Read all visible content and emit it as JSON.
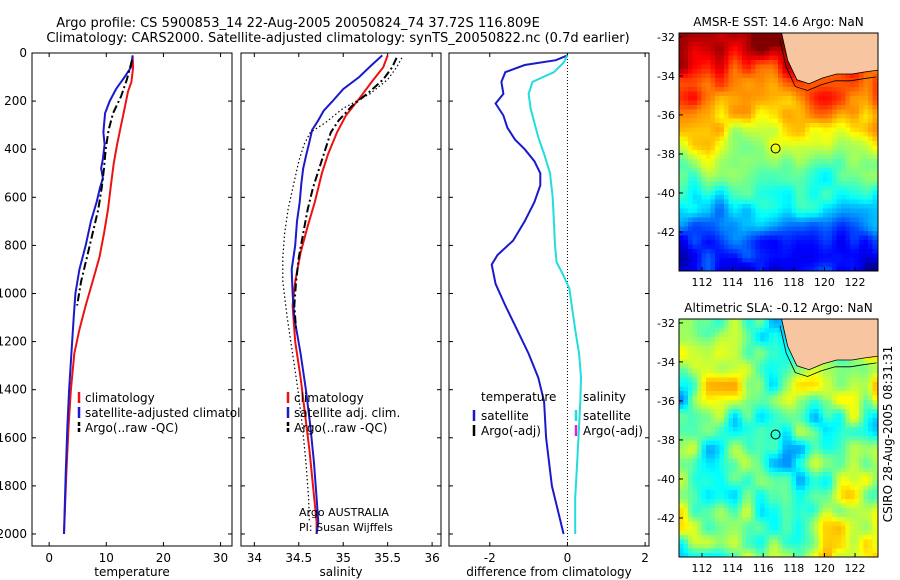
{
  "title_line1": "Argo profile: CS 5900853_14 22-Aug-2005 20050824_74 37.72S 116.809E",
  "title_line2": "Climatology: CARS2000. Satellite-adjusted climatology: synTS_20050822.nc (0.7d earlier)",
  "side_label": "CSIRO 28-Aug-2005 08:31:31",
  "colors": {
    "climatology": "#ee1111",
    "satellite": "#1a1acc",
    "argo": "#000000",
    "sal_satellite": "#22dddd",
    "sal_argo_adj": "#dd22dd",
    "land": "#f7c6a0"
  },
  "chart_data": [
    {
      "id": "temperature",
      "type": "line",
      "xlabel": "temperature",
      "ylabel": "",
      "xlim": [
        -3,
        32
      ],
      "ylim": [
        2050,
        0
      ],
      "xticks": [
        0,
        10,
        20,
        30
      ],
      "xticklabels": [
        "0",
        "10",
        "20",
        "30"
      ],
      "yticks": [
        0,
        200,
        400,
        600,
        800,
        1000,
        1200,
        1400,
        1600,
        1800,
        2000
      ],
      "yticklabels": [
        "0",
        "200",
        "400",
        "600",
        "800",
        "1000",
        "1200",
        "1400",
        "1600",
        "1800",
        "2000"
      ],
      "series": [
        {
          "name": "climatology",
          "style": "solid",
          "points": [
            [
              14.6,
              10
            ],
            [
              14.7,
              60
            ],
            [
              14.4,
              120
            ],
            [
              13.8,
              160
            ],
            [
              13.2,
              230
            ],
            [
              12.6,
              300
            ],
            [
              11.9,
              380
            ],
            [
              11.3,
              460
            ],
            [
              10.8,
              550
            ],
            [
              10.3,
              650
            ],
            [
              9.6,
              750
            ],
            [
              8.8,
              850
            ],
            [
              7.6,
              950
            ],
            [
              6.4,
              1050
            ],
            [
              5.3,
              1150
            ],
            [
              4.4,
              1250
            ],
            [
              3.8,
              1400
            ],
            [
              3.4,
              1550
            ],
            [
              3.0,
              1750
            ],
            [
              2.6,
              2000
            ]
          ]
        },
        {
          "name": "satellite-adjusted climatology",
          "style": "solid",
          "points": [
            [
              14.6,
              10
            ],
            [
              14.3,
              60
            ],
            [
              13.2,
              100
            ],
            [
              11.7,
              150
            ],
            [
              10.6,
              200
            ],
            [
              9.8,
              250
            ],
            [
              9.6,
              300
            ],
            [
              9.5,
              330
            ],
            [
              9.7,
              380
            ],
            [
              9.4,
              440
            ],
            [
              9.1,
              480
            ],
            [
              9.4,
              520
            ],
            [
              8.9,
              560
            ],
            [
              8.3,
              620
            ],
            [
              7.3,
              700
            ],
            [
              6.4,
              800
            ],
            [
              5.3,
              900
            ],
            [
              4.6,
              1000
            ],
            [
              4.3,
              1100
            ],
            [
              3.9,
              1250
            ],
            [
              3.5,
              1400
            ],
            [
              3.2,
              1550
            ],
            [
              2.9,
              1750
            ],
            [
              2.6,
              2000
            ]
          ]
        },
        {
          "name": "Argo(..raw -QC)",
          "style": "dashdot",
          "points": [
            [
              14.5,
              30
            ],
            [
              13.6,
              110
            ],
            [
              12.6,
              180
            ],
            [
              11.2,
              250
            ],
            [
              10.4,
              320
            ],
            [
              9.9,
              400
            ],
            [
              9.6,
              480
            ],
            [
              9.2,
              560
            ],
            [
              8.6,
              650
            ],
            [
              7.6,
              750
            ],
            [
              6.6,
              850
            ],
            [
              5.6,
              950
            ],
            [
              4.9,
              1050
            ]
          ]
        }
      ],
      "legend": [
        "climatology",
        "satellite-adjusted climatology",
        "Argo(..raw -QC)"
      ],
      "legend_position": "lower-middle"
    },
    {
      "id": "salinity",
      "type": "line",
      "xlabel": "salinity",
      "ylabel": "",
      "xlim": [
        33.85,
        36.1
      ],
      "ylim": [
        2050,
        0
      ],
      "xticks": [
        34,
        34.5,
        35,
        35.5,
        36
      ],
      "xticklabels": [
        "34",
        "34.5",
        "35",
        "35.5",
        "36"
      ],
      "series": [
        {
          "name": "climatology",
          "style": "solid",
          "points": [
            [
              35.5,
              10
            ],
            [
              35.45,
              60
            ],
            [
              35.32,
              120
            ],
            [
              35.18,
              190
            ],
            [
              35.03,
              260
            ],
            [
              34.93,
              330
            ],
            [
              34.83,
              420
            ],
            [
              34.76,
              500
            ],
            [
              34.68,
              620
            ],
            [
              34.6,
              720
            ],
            [
              34.52,
              830
            ],
            [
              34.46,
              950
            ],
            [
              34.43,
              1050
            ],
            [
              34.46,
              1200
            ],
            [
              34.52,
              1350
            ],
            [
              34.57,
              1500
            ],
            [
              34.62,
              1650
            ],
            [
              34.66,
              1800
            ],
            [
              34.7,
              1950
            ],
            [
              34.7,
              2000
            ]
          ]
        },
        {
          "name": "satellite adj. clim.",
          "style": "solid",
          "points": [
            [
              35.44,
              10
            ],
            [
              35.32,
              50
            ],
            [
              35.18,
              100
            ],
            [
              35.0,
              150
            ],
            [
              34.88,
              200
            ],
            [
              34.78,
              240
            ],
            [
              34.72,
              280
            ],
            [
              34.65,
              320
            ],
            [
              34.62,
              370
            ],
            [
              34.58,
              430
            ],
            [
              34.55,
              480
            ],
            [
              34.53,
              540
            ],
            [
              34.51,
              620
            ],
            [
              34.48,
              700
            ],
            [
              34.46,
              800
            ],
            [
              34.42,
              900
            ],
            [
              34.43,
              1000
            ],
            [
              34.45,
              1100
            ],
            [
              34.52,
              1250
            ],
            [
              34.58,
              1400
            ],
            [
              34.63,
              1550
            ],
            [
              34.67,
              1700
            ],
            [
              34.7,
              1850
            ],
            [
              34.72,
              1950
            ],
            [
              34.7,
              2000
            ]
          ]
        },
        {
          "name": "Argo(..raw -QC)",
          "style": "dashdot",
          "points": [
            [
              35.6,
              20
            ],
            [
              35.55,
              60
            ],
            [
              35.45,
              110
            ],
            [
              35.3,
              160
            ],
            [
              35.1,
              220
            ],
            [
              34.95,
              280
            ],
            [
              34.86,
              330
            ],
            [
              34.8,
              400
            ],
            [
              34.73,
              480
            ],
            [
              34.66,
              560
            ],
            [
              34.6,
              650
            ],
            [
              34.55,
              750
            ],
            [
              34.5,
              850
            ],
            [
              34.47,
              950
            ],
            [
              34.45,
              1050
            ],
            [
              34.47,
              1150
            ]
          ]
        },
        {
          "name": "",
          "style": "dotted",
          "points": [
            [
              35.66,
              20
            ],
            [
              35.6,
              60
            ],
            [
              35.5,
              110
            ],
            [
              35.3,
              170
            ],
            [
              35.0,
              230
            ],
            [
              34.8,
              290
            ],
            [
              34.63,
              330
            ],
            [
              34.56,
              380
            ],
            [
              34.5,
              450
            ],
            [
              34.44,
              550
            ],
            [
              34.38,
              650
            ],
            [
              34.34,
              750
            ],
            [
              34.32,
              850
            ],
            [
              34.32,
              950
            ],
            [
              34.37,
              1100
            ],
            [
              34.43,
              1250
            ],
            [
              34.49,
              1400
            ],
            [
              34.54,
              1550
            ],
            [
              34.58,
              1700
            ],
            [
              34.61,
              1850
            ],
            [
              34.62,
              1950
            ]
          ]
        }
      ],
      "legend": [
        "climatology",
        "satellite adj. clim.",
        "Argo(..raw -QC)"
      ],
      "legend_position": "lower-middle",
      "annotation": [
        "Argo AUSTRALIA",
        "PI: Susan Wijffels"
      ]
    },
    {
      "id": "difference",
      "type": "line",
      "xlabel": "difference from climatology",
      "ylabel": "",
      "xlim": [
        -3.05,
        2.1
      ],
      "ylim": [
        2050,
        0
      ],
      "xticks": [
        -2,
        0,
        2
      ],
      "xticklabels": [
        "-2",
        "0",
        "2"
      ],
      "reference_line": {
        "x": 0,
        "style": "dotted"
      },
      "series": [
        {
          "name": "temperature satellite",
          "style": "solid",
          "points": [
            [
              0.0,
              10
            ],
            [
              -0.3,
              30
            ],
            [
              -1.1,
              50
            ],
            [
              -1.6,
              80
            ],
            [
              -1.7,
              120
            ],
            [
              -1.65,
              170
            ],
            [
              -1.85,
              210
            ],
            [
              -1.65,
              260
            ],
            [
              -1.55,
              310
            ],
            [
              -1.35,
              360
            ],
            [
              -1.1,
              400
            ],
            [
              -0.85,
              450
            ],
            [
              -0.7,
              500
            ],
            [
              -0.7,
              550
            ],
            [
              -0.85,
              620
            ],
            [
              -1.1,
              700
            ],
            [
              -1.4,
              780
            ],
            [
              -1.8,
              840
            ],
            [
              -1.95,
              880
            ],
            [
              -1.85,
              960
            ],
            [
              -1.6,
              1050
            ],
            [
              -1.3,
              1150
            ],
            [
              -1.0,
              1250
            ],
            [
              -0.75,
              1350
            ],
            [
              -0.6,
              1450
            ],
            [
              -0.55,
              1600
            ],
            [
              -0.4,
              1800
            ],
            [
              -0.1,
              2000
            ]
          ]
        },
        {
          "name": "salinity satellite",
          "style": "solid",
          "points": [
            [
              0.0,
              10
            ],
            [
              -0.1,
              40
            ],
            [
              -0.35,
              80
            ],
            [
              -0.9,
              120
            ],
            [
              -1.0,
              170
            ],
            [
              -0.95,
              230
            ],
            [
              -0.85,
              290
            ],
            [
              -0.75,
              350
            ],
            [
              -0.6,
              420
            ],
            [
              -0.45,
              500
            ],
            [
              -0.38,
              600
            ],
            [
              -0.35,
              700
            ],
            [
              -0.32,
              800
            ],
            [
              -0.28,
              870
            ],
            [
              -0.12,
              920
            ],
            [
              0.05,
              980
            ],
            [
              0.12,
              1060
            ],
            [
              0.2,
              1150
            ],
            [
              0.3,
              1250
            ],
            [
              0.35,
              1350
            ],
            [
              0.33,
              1450
            ],
            [
              0.3,
              1550
            ],
            [
              0.25,
              1700
            ],
            [
              0.2,
              1850
            ],
            [
              0.2,
              2000
            ]
          ]
        }
      ],
      "legend_left_title": "temperature",
      "legend_left": [
        "satellite",
        "Argo(-adj)"
      ],
      "legend_right_title": "salinity",
      "legend_right": [
        "satellite",
        "Argo(-adj)"
      ]
    }
  ],
  "maps": [
    {
      "id": "sst-map",
      "title": "AMSR-E SST: 14.6 Argo: NaN",
      "type": "heatmap",
      "xticklabels": [
        "112",
        "114",
        "116",
        "118",
        "120",
        "122"
      ],
      "yticklabels": [
        "-32",
        "-34",
        "-36",
        "-38",
        "-40",
        "-42"
      ],
      "xlim": [
        110.5,
        123.5
      ],
      "ylim": [
        -44,
        -31.8
      ],
      "marker": {
        "lon": 116.809,
        "lat": -37.72
      }
    },
    {
      "id": "sla-map",
      "title": "Altimetric SLA: -0.12 Argo: NaN",
      "type": "heatmap",
      "xticklabels": [
        "112",
        "114",
        "116",
        "118",
        "120",
        "122"
      ],
      "yticklabels": [
        "-32",
        "-34",
        "-36",
        "-38",
        "-40",
        "-42"
      ],
      "xlim": [
        110.5,
        123.5
      ],
      "ylim": [
        -44,
        -31.8
      ],
      "marker": {
        "lon": 116.809,
        "lat": -37.72
      }
    }
  ]
}
